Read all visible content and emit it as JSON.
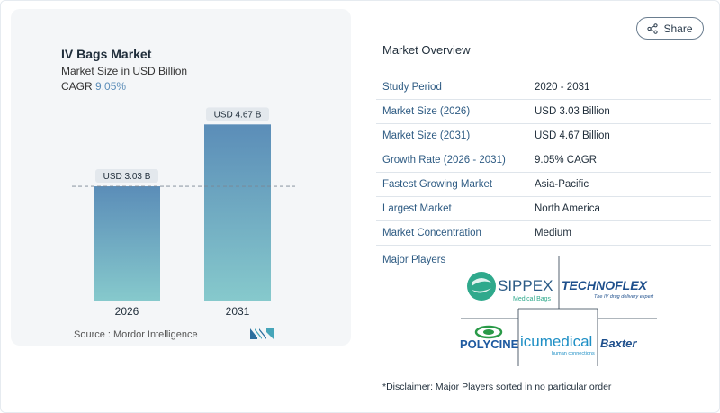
{
  "header": {
    "share_label": "Share"
  },
  "chart": {
    "title": "IV Bags Market",
    "subtitle": "Market Size in USD Billion",
    "cagr_label": "CAGR",
    "cagr_value": "9.05%",
    "source": "Source :  Mordor Intelligence"
  },
  "chart_data": {
    "type": "bar",
    "title": "IV Bags Market",
    "ylabel": "Market Size in USD Billion",
    "categories": [
      "2026",
      "2031"
    ],
    "values": [
      3.03,
      4.67
    ],
    "data_labels": [
      "USD 3.03 B",
      "USD 4.67 B"
    ],
    "ylim": [
      0,
      5.0
    ],
    "reference_line_value": 3.03,
    "grid": false,
    "bar_colors": [
      "#5b8db8",
      "#86c9cc"
    ]
  },
  "overview": {
    "title": "Market Overview",
    "rows": [
      {
        "key": "Study Period",
        "value": "2020 - 2031"
      },
      {
        "key": "Market Size (2026)",
        "value": "USD 3.03 Billion"
      },
      {
        "key": "Market Size (2031)",
        "value": "USD 4.67 Billion"
      },
      {
        "key": "Growth Rate (2026 - 2031)",
        "value": "9.05% CAGR"
      },
      {
        "key": "Fastest Growing Market",
        "value": "Asia-Pacific"
      },
      {
        "key": "Largest Market",
        "value": "North America"
      },
      {
        "key": "Market Concentration",
        "value": "Medium"
      }
    ]
  },
  "players": {
    "title": "Major Players",
    "logos": {
      "sippex_name": "SIPPEX",
      "sippex_tag": "Medical Bags",
      "technoflex_name": "TECHNOFLEX",
      "technoflex_tag": "The IV drug delivery expert",
      "polycine_name": "POLYCINE",
      "icu_name": "icumedical",
      "icu_tag": "human connections",
      "baxter_name": "Baxter"
    }
  },
  "disclaimer": "*Disclaimer: Major Players sorted in no particular order"
}
